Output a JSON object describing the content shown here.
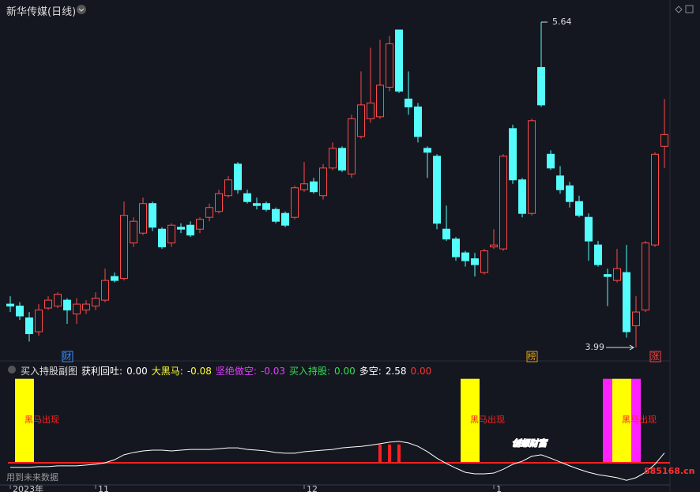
{
  "header": {
    "title": "新华传媒(日线)"
  },
  "chart_data": {
    "type": "candlestick",
    "up_color": "#ff4a4a",
    "down_color": "#54fcfc",
    "ylim": [
      3.93,
      5.68
    ],
    "categories": [
      "2023年",
      null,
      null,
      null,
      null,
      null,
      null,
      null,
      null,
      "11",
      null,
      null,
      null,
      null,
      null,
      null,
      null,
      null,
      null,
      null,
      null,
      null,
      null,
      null,
      null,
      null,
      null,
      null,
      null,
      null,
      null,
      "12",
      null,
      null,
      null,
      null,
      null,
      null,
      null,
      null,
      null,
      null,
      null,
      null,
      null,
      null,
      null,
      null,
      null,
      null,
      null,
      "1",
      null,
      null,
      null,
      null,
      null,
      null,
      null,
      null,
      null,
      null,
      null,
      null,
      null,
      null,
      null,
      null,
      null,
      null
    ],
    "open": [
      4.21,
      4.2,
      4.14,
      4.07,
      4.19,
      4.2,
      4.23,
      4.16,
      4.18,
      4.2,
      4.23,
      4.35,
      4.34,
      4.52,
      4.57,
      4.72,
      4.59,
      4.52,
      4.6,
      4.61,
      4.59,
      4.65,
      4.68,
      4.76,
      4.92,
      4.77,
      4.72,
      4.72,
      4.69,
      4.67,
      4.65,
      4.79,
      4.83,
      4.76,
      4.9,
      5.0,
      4.87,
      5.06,
      5.15,
      5.16,
      5.31,
      5.6,
      5.25,
      5.21,
      5.0,
      4.96,
      4.59,
      4.54,
      4.47,
      4.44,
      4.37,
      4.5,
      4.49,
      5.1,
      4.84,
      4.67,
      5.41,
      4.97,
      4.86,
      4.81,
      4.73,
      4.65,
      4.51,
      4.36,
      4.33,
      4.37,
      4.1,
      4.18,
      4.51,
      5.01
    ],
    "high": [
      4.25,
      4.22,
      4.17,
      4.21,
      4.25,
      4.27,
      4.24,
      4.24,
      4.23,
      4.27,
      4.39,
      4.37,
      4.73,
      4.65,
      4.75,
      4.73,
      4.6,
      4.62,
      4.62,
      4.63,
      4.65,
      4.72,
      4.79,
      4.86,
      4.93,
      4.79,
      4.75,
      4.73,
      4.7,
      4.68,
      4.81,
      4.93,
      4.85,
      4.92,
      5.03,
      5.01,
      5.17,
      5.39,
      5.51,
      5.55,
      5.57,
      5.6,
      5.39,
      5.23,
      5.01,
      4.97,
      4.71,
      4.55,
      4.48,
      4.47,
      4.49,
      4.59,
      4.97,
      5.12,
      4.85,
      5.15,
      5.64,
      4.99,
      4.91,
      4.83,
      4.76,
      4.67,
      4.53,
      4.39,
      4.49,
      4.51,
      4.25,
      4.53,
      4.98,
      5.25
    ],
    "low": [
      4.17,
      4.13,
      4.02,
      4.05,
      4.18,
      4.19,
      4.11,
      4.11,
      4.16,
      4.18,
      4.22,
      4.32,
      4.33,
      4.5,
      4.56,
      4.58,
      4.49,
      4.5,
      4.57,
      4.55,
      4.57,
      4.63,
      4.67,
      4.75,
      4.77,
      4.72,
      4.69,
      4.68,
      4.62,
      4.6,
      4.64,
      4.78,
      4.77,
      4.74,
      4.89,
      4.88,
      4.85,
      5.05,
      5.13,
      5.15,
      5.29,
      5.28,
      5.17,
      5.03,
      4.85,
      4.59,
      4.53,
      4.43,
      4.4,
      4.35,
      4.36,
      4.49,
      4.48,
      4.82,
      4.65,
      4.66,
      5.21,
      4.89,
      4.77,
      4.7,
      4.65,
      4.43,
      4.4,
      4.2,
      4.32,
      4.04,
      3.99,
      4.17,
      4.5,
      4.9
    ],
    "close": [
      4.2,
      4.15,
      4.06,
      4.18,
      4.23,
      4.26,
      4.18,
      4.21,
      4.21,
      4.24,
      4.33,
      4.33,
      4.66,
      4.63,
      4.72,
      4.6,
      4.5,
      4.61,
      4.59,
      4.56,
      4.64,
      4.7,
      4.77,
      4.84,
      4.79,
      4.73,
      4.71,
      4.69,
      4.63,
      4.61,
      4.8,
      4.82,
      4.78,
      4.9,
      5.0,
      4.89,
      5.15,
      5.22,
      5.23,
      5.32,
      5.53,
      5.29,
      5.21,
      5.06,
      4.98,
      4.62,
      4.54,
      4.45,
      4.43,
      4.41,
      4.48,
      4.51,
      4.96,
      4.84,
      4.67,
      5.14,
      5.22,
      4.9,
      4.79,
      4.73,
      4.66,
      4.53,
      4.41,
      4.35,
      4.39,
      4.07,
      4.17,
      4.52,
      4.97,
      5.07
    ],
    "annotations": {
      "max": 5.64,
      "min": 3.99
    },
    "tags": [
      null,
      null,
      null,
      null,
      null,
      null,
      "财",
      null,
      null,
      null,
      null,
      null,
      null,
      null,
      null,
      null,
      null,
      null,
      null,
      null,
      null,
      null,
      null,
      null,
      null,
      null,
      null,
      null,
      null,
      null,
      null,
      null,
      null,
      null,
      null,
      null,
      null,
      null,
      null,
      null,
      null,
      null,
      null,
      null,
      null,
      null,
      null,
      null,
      null,
      null,
      null,
      null,
      null,
      null,
      null,
      "榜",
      null,
      null,
      null,
      null,
      null,
      null,
      null,
      null,
      null,
      null,
      null,
      null,
      "涨",
      null
    ]
  },
  "indicator": {
    "title": "买入持股副图",
    "legend": [
      {
        "name": "获利回吐:",
        "value": "0.00",
        "color": "#ffffff"
      },
      {
        "name": "大黑马:",
        "value": "-0.08",
        "color": "#ffff33"
      },
      {
        "name": "坚绝做空:",
        "value": "-0.03",
        "color": "#e040ff"
      },
      {
        "name": "买入持股:",
        "value": "0.00",
        "color": "#33dd55"
      },
      {
        "name": "多空:",
        "value": "2.58",
        "color": "#ffffff"
      }
    ],
    "extra_value": "0.00",
    "ylim": [
      -6,
      24
    ],
    "line": {
      "color": "#ffffff",
      "values": [
        -1.2,
        -1.2,
        -1.2,
        -1.0,
        -1.0,
        -0.8,
        -0.8,
        -0.8,
        -0.6,
        -0.4,
        0,
        0.8,
        2.1,
        2.7,
        3.1,
        3.3,
        3.3,
        3.1,
        3.3,
        3.5,
        3.5,
        3.5,
        3.7,
        3.9,
        3.9,
        3.5,
        3.3,
        3.1,
        2.7,
        2.5,
        2.5,
        2.9,
        3.1,
        3.3,
        3.5,
        3.9,
        4.1,
        4.3,
        4.6,
        5.0,
        5.4,
        5.6,
        5.2,
        4.3,
        2.9,
        1.2,
        -0.2,
        -1.4,
        -2.5,
        -2.9,
        -2.9,
        -2.7,
        -1.7,
        -0.4,
        0.4,
        1.7,
        2.1,
        1.2,
        0.2,
        -0.8,
        -1.7,
        -2.5,
        -3.1,
        -3.5,
        -3.9,
        -4.6,
        -3.9,
        -2.5,
        -0.4,
        2.58
      ]
    },
    "red_bars": {
      "color": "#ff2020",
      "values": [
        null,
        null,
        null,
        null,
        null,
        null,
        null,
        null,
        null,
        null,
        null,
        null,
        null,
        null,
        null,
        null,
        null,
        null,
        null,
        null,
        null,
        null,
        null,
        null,
        null,
        null,
        null,
        null,
        null,
        null,
        null,
        null,
        null,
        null,
        null,
        null,
        null,
        null,
        null,
        4.8,
        4.8,
        4.8,
        null,
        null,
        null,
        null,
        null,
        null,
        null,
        null,
        null,
        null,
        null,
        null,
        null,
        null,
        null,
        null,
        null,
        null,
        null,
        null,
        null,
        null,
        null,
        null,
        null,
        null,
        null,
        null
      ]
    },
    "yellow_bars": {
      "color": "#ffff00",
      "values": [
        null,
        22,
        22,
        null,
        null,
        null,
        null,
        null,
        null,
        null,
        null,
        null,
        null,
        null,
        null,
        null,
        null,
        null,
        null,
        null,
        null,
        null,
        null,
        null,
        null,
        null,
        null,
        null,
        null,
        null,
        null,
        null,
        null,
        null,
        null,
        null,
        null,
        null,
        null,
        null,
        null,
        null,
        null,
        null,
        null,
        null,
        null,
        null,
        22,
        22,
        null,
        null,
        null,
        null,
        null,
        null,
        null,
        null,
        null,
        null,
        null,
        null,
        null,
        null,
        22,
        22,
        null,
        null,
        null,
        null
      ]
    },
    "magenta_bars": {
      "color": "#ff22ff",
      "values": [
        null,
        null,
        null,
        null,
        null,
        null,
        null,
        null,
        null,
        null,
        null,
        null,
        null,
        null,
        null,
        null,
        null,
        null,
        null,
        null,
        null,
        null,
        null,
        null,
        null,
        null,
        null,
        null,
        null,
        null,
        null,
        null,
        null,
        null,
        null,
        null,
        null,
        null,
        null,
        null,
        null,
        null,
        null,
        null,
        null,
        null,
        null,
        null,
        null,
        null,
        null,
        null,
        null,
        null,
        null,
        null,
        null,
        null,
        null,
        null,
        null,
        null,
        null,
        22,
        null,
        null,
        22,
        null,
        null,
        null
      ]
    },
    "zone_label": "黑马出现"
  },
  "footer": {
    "note": "用到未来数据",
    "watermark": "创想财富",
    "site": "885168.cn"
  }
}
